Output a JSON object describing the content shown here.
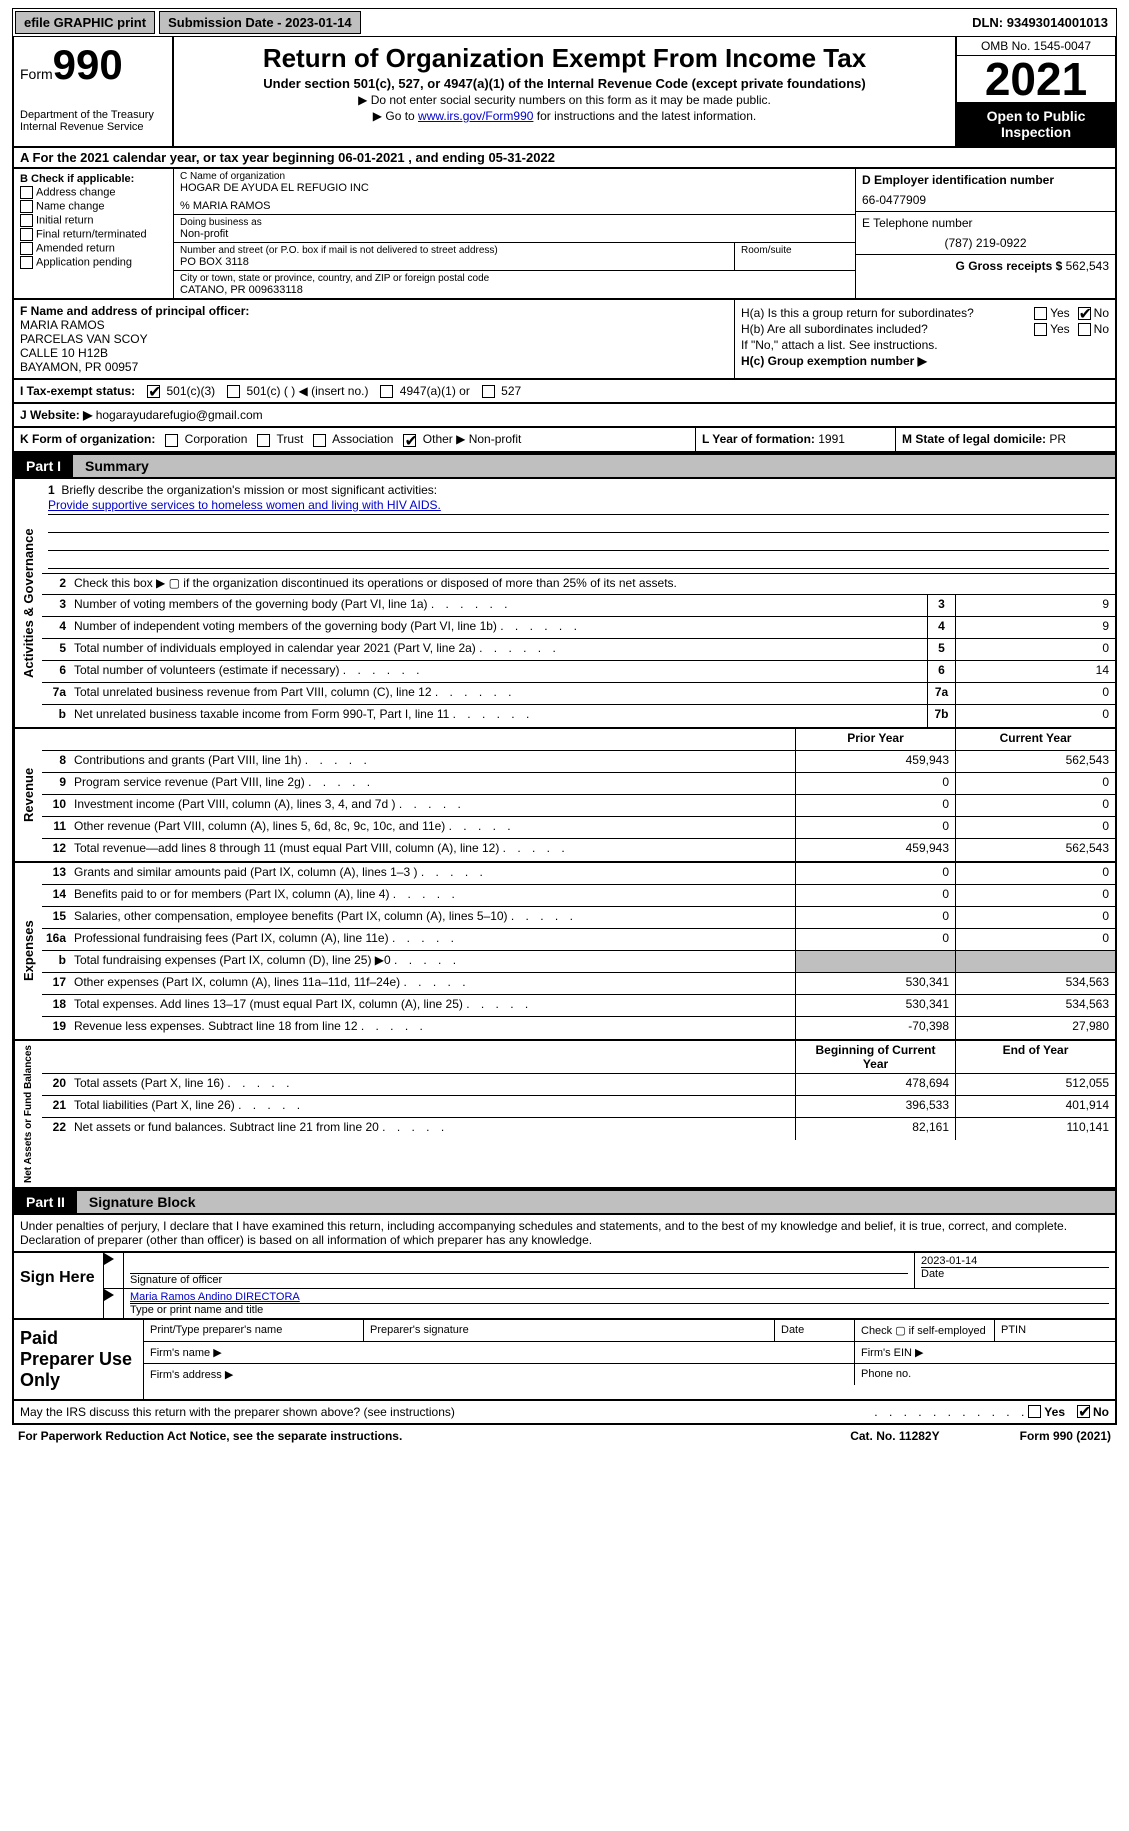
{
  "topbar": {
    "efile": "efile GRAPHIC print",
    "sub_label": "Submission Date - ",
    "sub_date": "2023-01-14",
    "dln_label": "DLN: ",
    "dln": "93493014001013"
  },
  "header": {
    "form_word": "Form",
    "form_num": "990",
    "dept": "Department of the Treasury Internal Revenue Service",
    "title": "Return of Organization Exempt From Income Tax",
    "sub": "Under section 501(c), 527, or 4947(a)(1) of the Internal Revenue Code (except private foundations)",
    "note1": "▶ Do not enter social security numbers on this form as it may be made public.",
    "note2_a": "▶ Go to ",
    "note2_link": "www.irs.gov/Form990",
    "note2_b": " for instructions and the latest information.",
    "omb": "OMB No. 1545-0047",
    "year": "2021",
    "inspect": "Open to Public Inspection"
  },
  "row_a": {
    "text_a": "A For the 2021 calendar year, or tax year beginning ",
    "begin": "06-01-2021",
    "text_b": " , and ending ",
    "end": "05-31-2022"
  },
  "col_b": {
    "label": "B Check if applicable:",
    "opts": [
      "Address change",
      "Name change",
      "Initial return",
      "Final return/terminated",
      "Amended return",
      "Application pending"
    ]
  },
  "col_c": {
    "name_lbl": "C Name of organization",
    "name": "HOGAR DE AYUDA EL REFUGIO INC",
    "care": "% MARIA RAMOS",
    "dba_lbl": "Doing business as",
    "dba": "Non-profit",
    "street_lbl": "Number and street (or P.O. box if mail is not delivered to street address)",
    "street": "PO BOX 3118",
    "room_lbl": "Room/suite",
    "city_lbl": "City or town, state or province, country, and ZIP or foreign postal code",
    "city": "CATANO, PR  009633118"
  },
  "col_d": {
    "ein_lbl": "D Employer identification number",
    "ein": "66-0477909",
    "tel_lbl": "E Telephone number",
    "tel": "(787) 219-0922",
    "gross_lbl": "G Gross receipts $ ",
    "gross": "562,543"
  },
  "sec_f": {
    "label": "F Name and address of principal officer:",
    "l1": "MARIA RAMOS",
    "l2": "PARCELAS VAN SCOY",
    "l3": "CALLE 10 H12B",
    "l4": "BAYAMON, PR  00957"
  },
  "sec_h": {
    "a": "H(a) Is this a group return for subordinates?",
    "b": "H(b) Are all subordinates included?",
    "bnote": "If \"No,\" attach a list. See instructions.",
    "c": "H(c) Group exemption number ▶",
    "yes": "Yes",
    "no": "No"
  },
  "row_i": {
    "label": "I   Tax-exempt status:",
    "o1": "501(c)(3)",
    "o2": "501(c) (  ) ◀ (insert no.)",
    "o3": "4947(a)(1) or",
    "o4": "527"
  },
  "row_j": {
    "label": "J   Website: ▶",
    "val": "hogarayudarefugio@gmail.com"
  },
  "row_k": {
    "label": "K Form of organization:",
    "opts": [
      "Corporation",
      "Trust",
      "Association",
      "Other ▶"
    ],
    "other": "Non-profit",
    "year_lbl": "L Year of formation: ",
    "year": "1991",
    "state_lbl": "M State of legal domicile: ",
    "state": "PR"
  },
  "part1": {
    "num": "Part I",
    "title": "Summary"
  },
  "mission": {
    "q": "Briefly describe the organization's mission or most significant activities:",
    "a": "Provide supportive services to homeless women and living with HIV AIDS."
  },
  "summary": {
    "line2": "Check this box ▶ ▢ if the organization discontinued its operations or disposed of more than 25% of its net assets.",
    "rows_gov": [
      {
        "n": "3",
        "d": "Number of voting members of the governing body (Part VI, line 1a)",
        "box": "3",
        "v": "9"
      },
      {
        "n": "4",
        "d": "Number of independent voting members of the governing body (Part VI, line 1b)",
        "box": "4",
        "v": "9"
      },
      {
        "n": "5",
        "d": "Total number of individuals employed in calendar year 2021 (Part V, line 2a)",
        "box": "5",
        "v": "0"
      },
      {
        "n": "6",
        "d": "Total number of volunteers (estimate if necessary)",
        "box": "6",
        "v": "14"
      },
      {
        "n": "7a",
        "d": "Total unrelated business revenue from Part VIII, column (C), line 12",
        "box": "7a",
        "v": "0"
      },
      {
        "n": "b",
        "d": "Net unrelated business taxable income from Form 990-T, Part I, line 11",
        "box": "7b",
        "v": "0"
      }
    ],
    "col_hdr_prior": "Prior Year",
    "col_hdr_curr": "Current Year",
    "rows_rev": [
      {
        "n": "8",
        "d": "Contributions and grants (Part VIII, line 1h)",
        "p": "459,943",
        "c": "562,543"
      },
      {
        "n": "9",
        "d": "Program service revenue (Part VIII, line 2g)",
        "p": "0",
        "c": "0"
      },
      {
        "n": "10",
        "d": "Investment income (Part VIII, column (A), lines 3, 4, and 7d )",
        "p": "0",
        "c": "0"
      },
      {
        "n": "11",
        "d": "Other revenue (Part VIII, column (A), lines 5, 6d, 8c, 9c, 10c, and 11e)",
        "p": "0",
        "c": "0"
      },
      {
        "n": "12",
        "d": "Total revenue—add lines 8 through 11 (must equal Part VIII, column (A), line 12)",
        "p": "459,943",
        "c": "562,543"
      }
    ],
    "rows_exp": [
      {
        "n": "13",
        "d": "Grants and similar amounts paid (Part IX, column (A), lines 1–3 )",
        "p": "0",
        "c": "0"
      },
      {
        "n": "14",
        "d": "Benefits paid to or for members (Part IX, column (A), line 4)",
        "p": "0",
        "c": "0"
      },
      {
        "n": "15",
        "d": "Salaries, other compensation, employee benefits (Part IX, column (A), lines 5–10)",
        "p": "0",
        "c": "0"
      },
      {
        "n": "16a",
        "d": "Professional fundraising fees (Part IX, column (A), line 11e)",
        "p": "0",
        "c": "0"
      },
      {
        "n": "b",
        "d": "Total fundraising expenses (Part IX, column (D), line 25) ▶0",
        "p": "",
        "c": "",
        "shade": true
      },
      {
        "n": "17",
        "d": "Other expenses (Part IX, column (A), lines 11a–11d, 11f–24e)",
        "p": "530,341",
        "c": "534,563"
      },
      {
        "n": "18",
        "d": "Total expenses. Add lines 13–17 (must equal Part IX, column (A), line 25)",
        "p": "530,341",
        "c": "534,563"
      },
      {
        "n": "19",
        "d": "Revenue less expenses. Subtract line 18 from line 12",
        "p": "-70,398",
        "c": "27,980"
      }
    ],
    "col_hdr_beg": "Beginning of Current Year",
    "col_hdr_end": "End of Year",
    "rows_net": [
      {
        "n": "20",
        "d": "Total assets (Part X, line 16)",
        "p": "478,694",
        "c": "512,055"
      },
      {
        "n": "21",
        "d": "Total liabilities (Part X, line 26)",
        "p": "396,533",
        "c": "401,914"
      },
      {
        "n": "22",
        "d": "Net assets or fund balances. Subtract line 21 from line 20",
        "p": "82,161",
        "c": "110,141"
      }
    ]
  },
  "vlabels": {
    "gov": "Activities & Governance",
    "rev": "Revenue",
    "exp": "Expenses",
    "net": "Net Assets or Fund Balances"
  },
  "part2": {
    "num": "Part II",
    "title": "Signature Block"
  },
  "sig_text": "Under penalties of perjury, I declare that I have examined this return, including accompanying schedules and statements, and to the best of my knowledge and belief, it is true, correct, and complete. Declaration of preparer (other than officer) is based on all information of which preparer has any knowledge.",
  "sign": {
    "here": "Sign Here",
    "sig_lbl": "Signature of officer",
    "date_lbl": "Date",
    "date": "2023-01-14",
    "name": "Maria Ramos Andino  DIRECTORA",
    "name_lbl": "Type or print name and title"
  },
  "paid": {
    "title": "Paid Preparer Use Only",
    "h1": "Print/Type preparer's name",
    "h2": "Preparer's signature",
    "h3": "Date",
    "h4": "Check ▢ if self-employed",
    "h5": "PTIN",
    "firm_name": "Firm's name   ▶",
    "firm_ein": "Firm's EIN ▶",
    "firm_addr": "Firm's address ▶",
    "phone": "Phone no."
  },
  "footer": {
    "q": "May the IRS discuss this return with the preparer shown above? (see instructions)",
    "yes": "Yes",
    "no": "No",
    "pra": "For Paperwork Reduction Act Notice, see the separate instructions.",
    "cat": "Cat. No. 11282Y",
    "form": "Form 990 (2021)"
  }
}
